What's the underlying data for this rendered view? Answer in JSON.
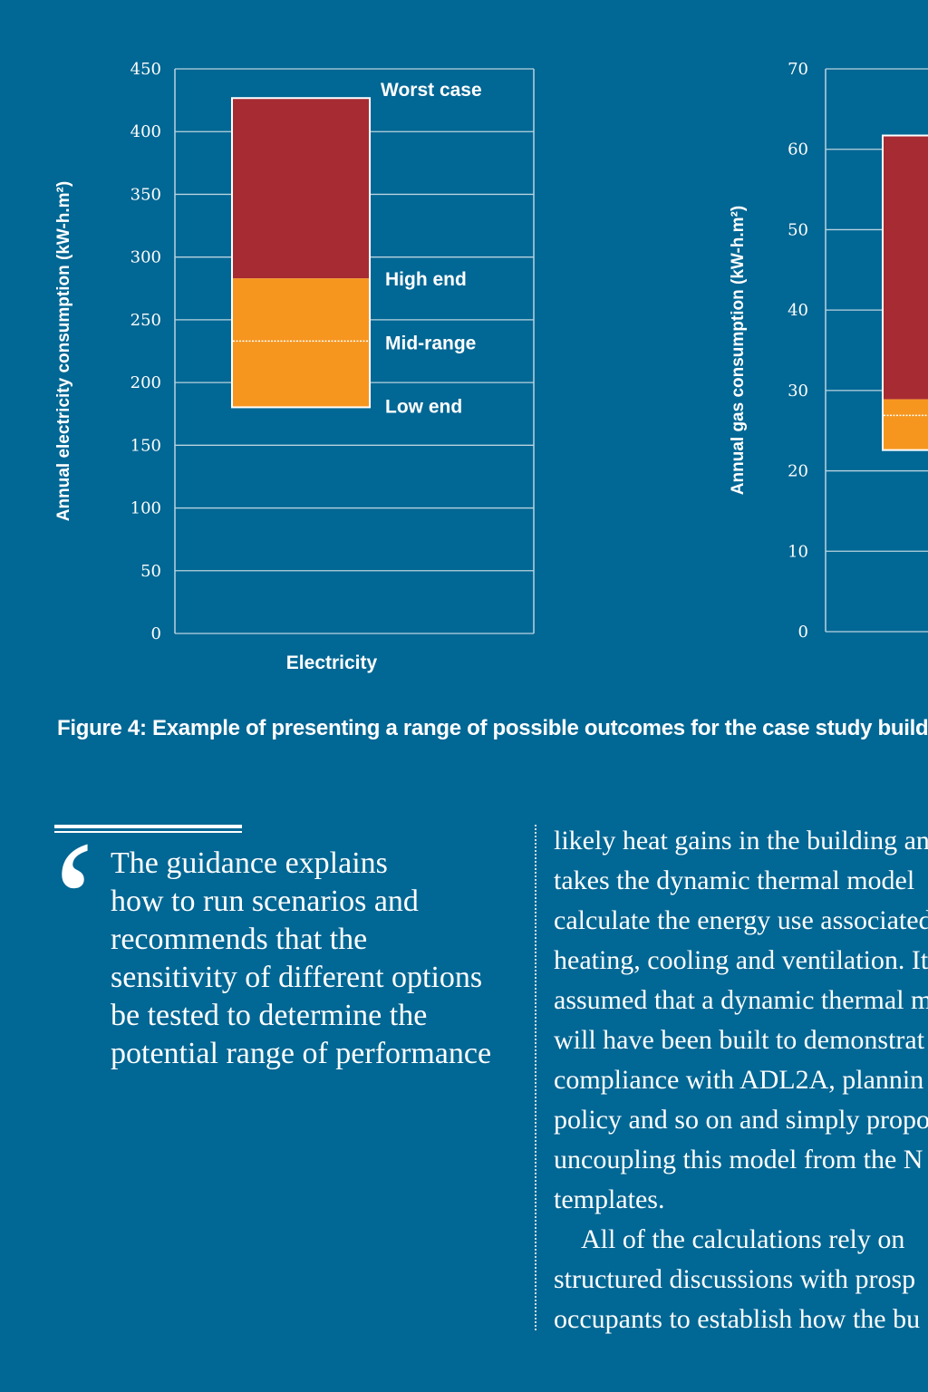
{
  "colors": {
    "background": "#016794",
    "worst": "#a72b33",
    "range": "#f6961f",
    "grid": "#b9d3e0"
  },
  "chart_data": [
    {
      "type": "bar",
      "subtype": "floating-stacked-range",
      "ylabel": "Annual electricity consumption (kW-h.m²)",
      "xlabel": "",
      "categories": [
        "Electricity"
      ],
      "ylim": [
        0,
        450
      ],
      "yticks": [
        "0",
        "50",
        "100",
        "150",
        "200",
        "250",
        "300",
        "350",
        "400",
        "450"
      ],
      "grid": true,
      "low_end": 181,
      "mid_range": 233,
      "high_end": 283,
      "worst_case": 426,
      "labels": {
        "worst": "Worst case",
        "high": "High end",
        "mid": "Mid-range",
        "low": "Low end"
      }
    },
    {
      "type": "bar",
      "subtype": "floating-stacked-range",
      "ylabel": "Annual gas consumption (kW-h.m²)",
      "ylim": [
        0,
        70
      ],
      "yticks": [
        "0",
        "10",
        "20",
        "30",
        "40",
        "50",
        "60",
        "70"
      ],
      "grid": true,
      "low_end": 22.7,
      "mid_range": 26.9,
      "high_end": 28.9,
      "worst_case": 61.6
    }
  ],
  "caption": "Figure 4: Example of presenting a range of possible outcomes for the case study build",
  "pull_quote": {
    "icon": "opening-quote-icon",
    "lines": [
      "The guidance explains",
      "how to run scenarios and",
      "recommends that the",
      "sensitivity of different options",
      "be tested to determine the",
      "potential range of performance"
    ]
  },
  "body_text": {
    "lines": [
      "likely heat gains in the building an",
      "takes the dynamic thermal model",
      "calculate the energy use associated",
      "heating, cooling and ventilation. It",
      "assumed that a dynamic thermal m",
      "will have been built to demonstrat",
      "compliance with ADL2A, plannin",
      "policy and so on and simply propo",
      "uncoupling this model from the N",
      "templates.",
      "All of the calculations rely on",
      "structured discussions with prosp",
      "occupants to establish how the bu"
    ]
  }
}
